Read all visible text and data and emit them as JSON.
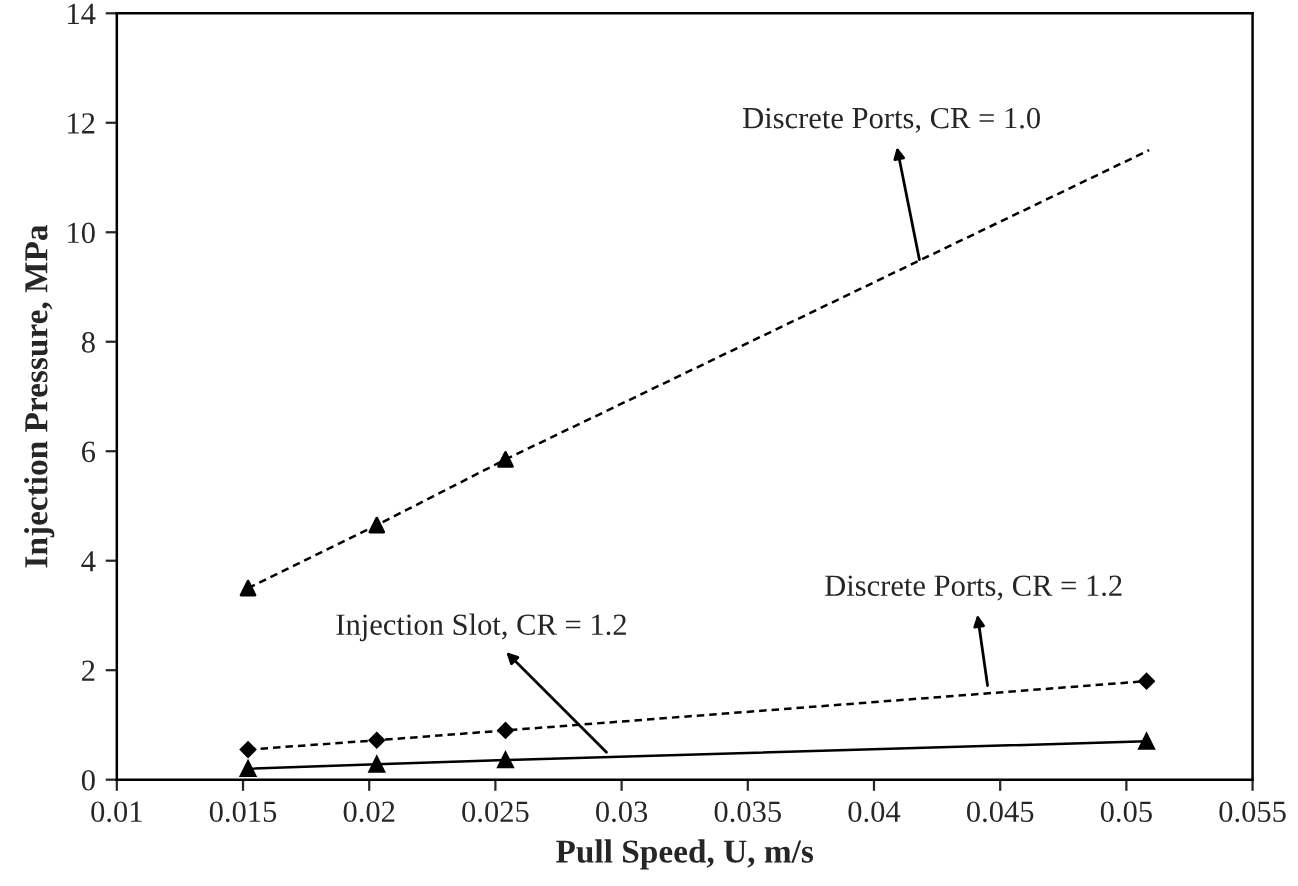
{
  "chart_data": {
    "type": "line",
    "xlabel": "Pull Speed, U, m/s",
    "ylabel": "Injection Pressure, MPa",
    "xlim": [
      0.01,
      0.055
    ],
    "xticks": [
      0.01,
      0.015,
      0.02,
      0.025,
      0.03,
      0.035,
      0.04,
      0.045,
      0.05,
      0.055
    ],
    "ylim": [
      0,
      14
    ],
    "yticks": [
      0,
      2,
      4,
      6,
      8,
      10,
      12,
      14
    ],
    "grid": false,
    "legend": false,
    "series": [
      {
        "color": "#000000",
        "line_style": "dashed",
        "marker": "none",
        "x": [
          0.0152,
          0.0203,
          0.0254,
          0.0509
        ],
        "values": [
          3.5,
          4.65,
          5.85,
          11.5
        ]
      },
      {
        "type": "scatter",
        "color": "#000000",
        "marker": "triangle",
        "x": [
          0.0152,
          0.0203,
          0.0254
        ],
        "values": [
          3.5,
          4.65,
          5.85
        ]
      },
      {
        "color": "#000000",
        "line_style": "dashed",
        "marker": "diamond",
        "x": [
          0.0152,
          0.0203,
          0.0254,
          0.0508
        ],
        "values": [
          0.55,
          0.72,
          0.9,
          1.8
        ]
      },
      {
        "color": "#000000",
        "line_style": "solid",
        "marker": "triangle",
        "x": [
          0.0152,
          0.0203,
          0.0254,
          0.0508
        ],
        "values": [
          0.2,
          0.28,
          0.36,
          0.7
        ]
      }
    ],
    "annotations": [
      {
        "text": "Discrete Ports, CR = 1.0",
        "x": 0.0418,
        "y": 9.5
      },
      {
        "text": "Discrete Ports, CR = 1.2",
        "x": 0.0445,
        "y": 1.72
      },
      {
        "text": "Injection Slot, CR = 1.2",
        "x": 0.0294,
        "y": 0.5
      }
    ]
  }
}
